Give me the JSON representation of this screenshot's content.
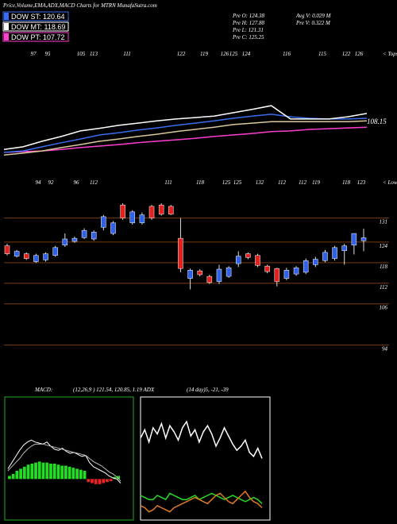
{
  "header": {
    "title": "Price,Volume,EMA,ADX,MACD Charts for MTRN  MunafaSutra.com",
    "legend": [
      {
        "label": "DOW ST: 120.64",
        "color": "#3a6cf0"
      },
      {
        "label": "DOW MT: 118.69",
        "color": "#ffffff"
      },
      {
        "label": "DOW PT: 107.72",
        "color": "#ff3fd0"
      }
    ],
    "stats": [
      "Pre   O: 124.38",
      "Pre   H: 127.88",
      "Pre   L: 121.31",
      "Pre   C: 125.25"
    ],
    "volume": [
      "Avg V: 0.029 M",
      "Pre   V: 0.322 M"
    ]
  },
  "chart_data": [
    {
      "type": "line",
      "ylim": [
        97,
        127
      ],
      "tops_label": "< Tops",
      "tops": [
        "97",
        "95",
        "105",
        "113",
        "111",
        "122",
        "119",
        "126",
        "125",
        "124",
        "116",
        "115",
        "122",
        "126"
      ],
      "annotations": [
        {
          "value": 108.15,
          "label": "108.15"
        }
      ],
      "series": [
        {
          "color": "#ff3fd0",
          "values": [
            99.8,
            100,
            100.2,
            100.6,
            101.1,
            101.5,
            101.9,
            102.4,
            102.8,
            103.2,
            103.6,
            104.1,
            104.5,
            104.9,
            105.4,
            105.6,
            106,
            106.2,
            106.4,
            106.6
          ]
        },
        {
          "color": "#d9c89a",
          "values": [
            99.1,
            99.6,
            100.2,
            101.1,
            101.9,
            102.8,
            103.4,
            104.1,
            104.7,
            105.4,
            106,
            106.6,
            107.3,
            107.7,
            108.1,
            108.1,
            108.1,
            108.1,
            108.1,
            108.3
          ]
        },
        {
          "color": "#3a6cf0",
          "values": [
            99.8,
            100.2,
            101.3,
            102.4,
            103.4,
            104.5,
            105.1,
            105.8,
            106.4,
            107.1,
            107.7,
            108.3,
            109,
            109.6,
            110.1,
            109.4,
            109,
            108.8,
            108.8,
            109
          ]
        },
        {
          "color": "#ffffff",
          "values": [
            100.6,
            101.3,
            102.8,
            104.1,
            105.6,
            106.3,
            107.1,
            107.7,
            108.3,
            108.8,
            109.2,
            109.6,
            110.5,
            111.4,
            112.4,
            108.8,
            108.8,
            108.8,
            109.4,
            110.3
          ]
        }
      ]
    },
    {
      "type": "candlestick",
      "ylim": [
        83.5,
        136
      ],
      "yticks": [
        131,
        124,
        118,
        112,
        106,
        94
      ],
      "grid_color": "#7a3b10",
      "up_color": "#2f62e8",
      "down_color": "#e0211d",
      "lows_label": "< Lows",
      "lows": [
        "94",
        "92",
        "96",
        "112",
        "111",
        "118",
        "125",
        "125",
        "132",
        "112",
        "112",
        "119",
        "118",
        "123"
      ],
      "open": [
        122.9,
        119.9,
        120.6,
        118.3,
        118.8,
        120.1,
        123.1,
        124.2,
        125.3,
        124.9,
        128.3,
        126.5,
        134.8,
        129.6,
        129.6,
        134.4,
        134.8,
        134.4,
        125.1,
        113.4,
        115.6,
        114.0,
        112.5,
        114.0,
        117.7,
        120.6,
        120.1,
        117.0,
        116.3,
        113.4,
        114.7,
        115.2,
        117.4,
        118.6,
        119.2,
        121.5,
        123.1,
        124.38
      ],
      "high": [
        123.5,
        121.7,
        121.0,
        120.6,
        121.0,
        122.9,
        126.5,
        125.6,
        128.0,
        127.4,
        131.9,
        130.1,
        135.3,
        133.3,
        132.6,
        134.8,
        135.3,
        134.8,
        131.0,
        116.3,
        116.1,
        114.5,
        117.4,
        117.0,
        121.3,
        121.0,
        120.6,
        117.4,
        116.5,
        116.5,
        117.0,
        119.2,
        119.7,
        121.7,
        122.9,
        123.5,
        126.5,
        127.88
      ],
      "low": [
        120.1,
        119.5,
        118.8,
        117.9,
        118.3,
        119.7,
        122.6,
        123.8,
        124.9,
        124.4,
        127.4,
        126.0,
        130.5,
        129.1,
        129.1,
        130.5,
        131.7,
        131.9,
        115.2,
        110.2,
        114.0,
        111.8,
        111.8,
        113.6,
        116.7,
        119.0,
        116.7,
        114.9,
        111.1,
        112.9,
        114.2,
        114.7,
        116.7,
        118.1,
        118.6,
        117.4,
        120.4,
        121.31
      ],
      "close": [
        120.6,
        121.3,
        119.2,
        120.1,
        120.6,
        122.4,
        124.9,
        125.1,
        127.4,
        126.9,
        131.4,
        129.6,
        131.0,
        132.8,
        131.9,
        131.0,
        132.1,
        132.1,
        116.3,
        115.8,
        114.5,
        112.2,
        116.1,
        116.5,
        119.9,
        119.5,
        117.2,
        115.4,
        112.5,
        115.8,
        116.5,
        118.6,
        119.0,
        121.0,
        122.4,
        122.9,
        126.5,
        125.25
      ]
    },
    {
      "type": "macd",
      "title": "MACD:",
      "subtitle": "(12,26,9 ) 121.54, 120.85, 1.19 ADX",
      "ylim": [
        -4,
        8
      ],
      "border": "#1faa1f",
      "pos_color": "#22dd22",
      "neg_color": "#ee2222",
      "histogram": [
        0.3,
        0.5,
        0.8,
        1.0,
        1.2,
        1.4,
        1.5,
        1.6,
        1.7,
        1.6,
        1.6,
        1.5,
        1.5,
        1.4,
        1.3,
        1.3,
        1.2,
        1.1,
        1.0,
        0.9,
        0.8,
        -0.3,
        -0.4,
        -0.5,
        -0.5,
        -0.4,
        -0.3,
        -0.2,
        0.2,
        0.3
      ],
      "series": [
        {
          "color": "#ffffff",
          "values": [
            1.0,
            1.6,
            2.2,
            2.8,
            3.3,
            3.6,
            3.8,
            3.6,
            3.5,
            3.4,
            3.6,
            3.2,
            2.9,
            2.8,
            3.0,
            2.7,
            2.5,
            2.6,
            2.4,
            2.2,
            2.3,
            1.6,
            1.2,
            1.0,
            0.8,
            0.6,
            0.3,
            0.1,
            0.0,
            -0.4
          ]
        },
        {
          "color": "#bbbbbb",
          "values": [
            0.8,
            1.2,
            1.6,
            2.0,
            2.5,
            2.9,
            3.2,
            3.4,
            3.4,
            3.4,
            3.3,
            3.2,
            3.1,
            3.0,
            2.9,
            2.8,
            2.7,
            2.6,
            2.5,
            2.4,
            2.3,
            2.0,
            1.7,
            1.5,
            1.3,
            1.0,
            0.7,
            0.5,
            0.2,
            -0.2
          ]
        }
      ]
    },
    {
      "type": "line",
      "title": "(14  day)5, -21, -39",
      "ylim": [
        0,
        60
      ],
      "border": "#ffffff",
      "series": [
        {
          "color": "#ffffff",
          "values": [
            40,
            44,
            38,
            45,
            42,
            47,
            40,
            46,
            43,
            39,
            45,
            48,
            41,
            44,
            38,
            43,
            46,
            42,
            36,
            40,
            45,
            41,
            37,
            34,
            36,
            39,
            33,
            31,
            35,
            30
          ]
        },
        {
          "color": "#22dd22",
          "values": [
            12,
            11,
            10,
            10,
            12,
            11,
            10,
            13,
            12,
            11,
            10,
            10,
            11,
            12,
            10,
            11,
            12,
            13,
            12,
            11,
            10,
            11,
            12,
            11,
            10,
            9,
            10,
            11,
            10,
            8
          ]
        },
        {
          "color": "#e07a20",
          "values": [
            7,
            6,
            4,
            5,
            7,
            6,
            5,
            4,
            6,
            7,
            8,
            9,
            10,
            11,
            10,
            9,
            8,
            10,
            12,
            13,
            11,
            9,
            8,
            10,
            12,
            14,
            11,
            9,
            8,
            6
          ]
        }
      ]
    }
  ]
}
